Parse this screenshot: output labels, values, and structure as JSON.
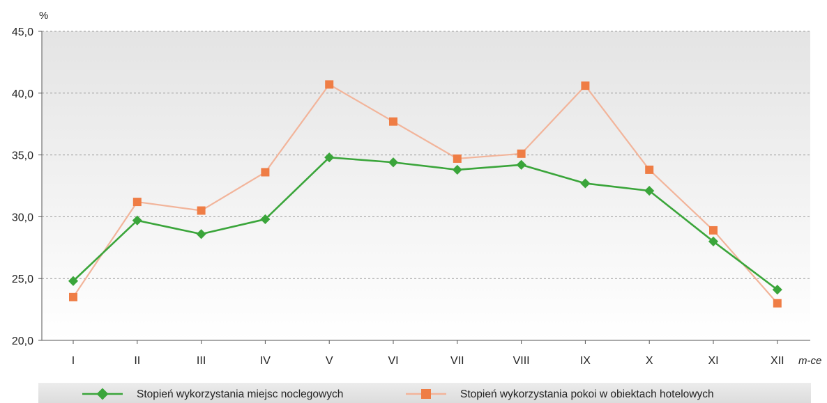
{
  "chart_data": {
    "type": "line",
    "title": "",
    "ylabel": "%",
    "xlabel": "m-ce",
    "ylim": [
      20,
      45
    ],
    "yticks": [
      "20,0",
      "25,0",
      "30,0",
      "35,0",
      "40,0",
      "45,0"
    ],
    "categories": [
      "I",
      "II",
      "III",
      "IV",
      "V",
      "VI",
      "VII",
      "VIII",
      "IX",
      "X",
      "XI",
      "XII"
    ],
    "grid": true,
    "legend_position": "bottom",
    "series": [
      {
        "name": "Stopień wykorzystania miejsc noclegowych",
        "color": "#3aa53a",
        "marker": "diamond",
        "values": [
          24.8,
          29.7,
          28.6,
          29.8,
          34.8,
          34.4,
          33.8,
          34.2,
          32.7,
          32.1,
          28.0,
          24.1
        ]
      },
      {
        "name": "Stopień wykorzystania pokoi w obiektach hotelowych",
        "color": "#ef7d45",
        "line_color": "#f2b49a",
        "marker": "square",
        "values": [
          23.5,
          31.2,
          30.5,
          33.6,
          40.7,
          37.7,
          34.7,
          35.1,
          40.6,
          33.8,
          28.9,
          23.0
        ]
      }
    ]
  }
}
